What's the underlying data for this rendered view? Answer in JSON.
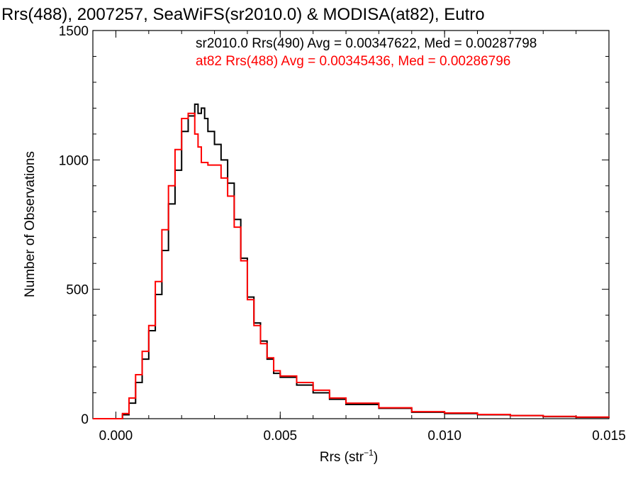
{
  "chart_data": {
    "type": "line",
    "title": "Rrs(488), 2007257, SeaWiFS(sr2010.0) & MODISA(at82), Eutro",
    "xlabel_main": "Rrs (str",
    "xlabel_sup": "−1",
    "xlabel_end": ")",
    "ylabel": "Number of Observations",
    "xlim": [
      -0.0007,
      0.015
    ],
    "ylim": [
      0,
      1500
    ],
    "xticks": [
      {
        "value": 0.0,
        "label": "0.000"
      },
      {
        "value": 0.005,
        "label": "0.005"
      },
      {
        "value": 0.01,
        "label": "0.010"
      },
      {
        "value": 0.015,
        "label": "0.015"
      }
    ],
    "yticks": [
      {
        "value": 0,
        "label": "0"
      },
      {
        "value": 500,
        "label": "500"
      },
      {
        "value": 1000,
        "label": "1000"
      },
      {
        "value": 1500,
        "label": "1500"
      }
    ],
    "grid": false,
    "legend_position": "top-right",
    "series": [
      {
        "name": "sr2010.0 Rrs(490) Avg = 0.00347622, Med = 0.00287798",
        "color": "#000000",
        "x": [
          -0.0007,
          0.0,
          0.0002,
          0.0004,
          0.0006,
          0.0008,
          0.001,
          0.0012,
          0.0014,
          0.0016,
          0.0018,
          0.002,
          0.0022,
          0.0024,
          0.0025,
          0.0026,
          0.0027,
          0.0028,
          0.003,
          0.0032,
          0.0034,
          0.0036,
          0.0038,
          0.004,
          0.0042,
          0.0044,
          0.0046,
          0.0048,
          0.005,
          0.0055,
          0.006,
          0.0065,
          0.007,
          0.008,
          0.009,
          0.01,
          0.011,
          0.012,
          0.013,
          0.014,
          0.015
        ],
        "y": [
          0,
          0,
          15,
          60,
          140,
          230,
          340,
          480,
          650,
          830,
          960,
          1110,
          1170,
          1215,
          1180,
          1200,
          1160,
          1110,
          1060,
          1000,
          910,
          770,
          620,
          470,
          370,
          300,
          230,
          175,
          160,
          130,
          100,
          75,
          55,
          40,
          25,
          20,
          15,
          12,
          8,
          5,
          3
        ]
      },
      {
        "name": "at82 Rrs(488) Avg = 0.00345436, Med = 0.00286796",
        "color": "#ff0000",
        "x": [
          -0.0007,
          0.0,
          0.0002,
          0.0004,
          0.0006,
          0.0008,
          0.001,
          0.0012,
          0.0014,
          0.0016,
          0.0018,
          0.002,
          0.0022,
          0.0024,
          0.0025,
          0.0026,
          0.0027,
          0.0028,
          0.003,
          0.0032,
          0.0034,
          0.0036,
          0.0038,
          0.004,
          0.0042,
          0.0044,
          0.0046,
          0.0048,
          0.005,
          0.0055,
          0.006,
          0.0065,
          0.007,
          0.008,
          0.009,
          0.01,
          0.011,
          0.012,
          0.013,
          0.014,
          0.015
        ],
        "y": [
          0,
          0,
          20,
          80,
          170,
          260,
          360,
          530,
          730,
          900,
          1040,
          1160,
          1180,
          1100,
          1050,
          990,
          990,
          980,
          980,
          930,
          860,
          740,
          610,
          460,
          360,
          290,
          235,
          185,
          165,
          140,
          110,
          80,
          60,
          42,
          27,
          22,
          16,
          12,
          9,
          6,
          4
        ]
      }
    ]
  }
}
